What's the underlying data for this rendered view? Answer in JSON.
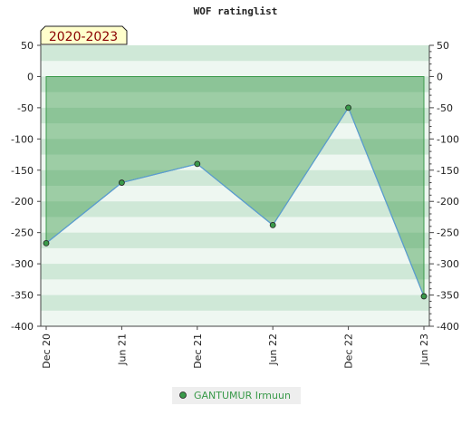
{
  "chart_data": {
    "type": "area",
    "title": "WOF ratinglist",
    "period_label": "2020-2023",
    "xlabel": "",
    "ylabel": "",
    "x_ticks": [
      "Dec 20",
      "Jun 21",
      "Dec 21",
      "Jun 22",
      "Dec 22",
      "Jun 23"
    ],
    "ylim": [
      -400,
      50
    ],
    "y_ticks": [
      50,
      0,
      -50,
      -100,
      -150,
      -200,
      -250,
      -300,
      -350,
      -400
    ],
    "grid": false,
    "legend_position": "bottom",
    "series": [
      {
        "name": "GANTUMUR Irmuun",
        "x": [
          "Dec 20",
          "Jun 21",
          "Dec 21",
          "Jun 22",
          "Dec 22",
          "Jun 23"
        ],
        "values": [
          -267,
          -170,
          -140,
          -238,
          -50,
          -352
        ]
      }
    ],
    "colors": {
      "line": "#5b9bd5",
      "fill": "#3a9a4a",
      "marker": "#3a9a4a",
      "legend_text": "#3a9a4a",
      "band_dark": "#cfe8d7",
      "band_light": "#eef7f1"
    }
  }
}
